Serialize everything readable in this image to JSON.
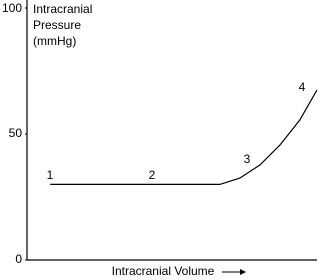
{
  "chart_data": {
    "type": "line",
    "ylabel": [
      "Intracranial",
      "Pressure",
      "(mmHg)"
    ],
    "xlabel": "Intracranial Volume",
    "annotations": [
      "1",
      "2",
      "3",
      "4"
    ],
    "x": [
      8,
      66.5,
      73.4,
      80.3,
      87.2,
      94.1,
      100
    ],
    "series": [
      {
        "color": "#000000",
        "values": [
          30,
          30,
          32.5,
          37.7,
          45.6,
          55.6,
          67.5
        ]
      }
    ],
    "xlim": [
      0,
      100
    ],
    "ylim": [
      0,
      100
    ],
    "yticks": [
      0,
      50,
      100
    ]
  }
}
